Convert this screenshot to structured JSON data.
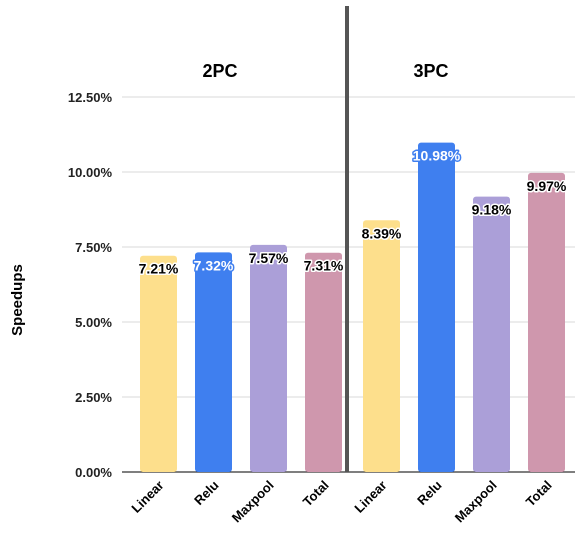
{
  "chart_data": {
    "type": "bar",
    "ylabel": "Speedups",
    "ylim": [
      0,
      12.5
    ],
    "yticks": [
      "0.00%",
      "2.50%",
      "5.00%",
      "7.50%",
      "10.00%",
      "12.50%"
    ],
    "grid": "horizontal",
    "groups": [
      {
        "title": "2PC",
        "bars": [
          {
            "category": "Linear",
            "value": 7.21,
            "label": "7.21%",
            "color": "#fddf8c",
            "label_color": "#000000",
            "label_outline": "#ffffff"
          },
          {
            "category": "Relu",
            "value": 7.32,
            "label": "7.32%",
            "color": "#3f7fef",
            "label_color": "#ffffff",
            "label_outline": "#3f7fef"
          },
          {
            "category": "Maxpool",
            "value": 7.57,
            "label": "7.57%",
            "color": "#ab9fd8",
            "label_color": "#000000",
            "label_outline": "#ffffff"
          },
          {
            "category": "Total",
            "value": 7.31,
            "label": "7.31%",
            "color": "#cf97ad",
            "label_color": "#000000",
            "label_outline": "#ffffff"
          }
        ]
      },
      {
        "title": "3PC",
        "bars": [
          {
            "category": "Linear",
            "value": 8.39,
            "label": "8.39%",
            "color": "#fddf8c",
            "label_color": "#000000",
            "label_outline": "#ffffff"
          },
          {
            "category": "Relu",
            "value": 10.98,
            "label": "10.98%",
            "color": "#3f7fef",
            "label_color": "#ffffff",
            "label_outline": "#3f7fef"
          },
          {
            "category": "Maxpool",
            "value": 9.18,
            "label": "9.18%",
            "color": "#ab9fd8",
            "label_color": "#000000",
            "label_outline": "#ffffff"
          },
          {
            "category": "Total",
            "value": 9.97,
            "label": "9.97%",
            "color": "#cf97ad",
            "label_color": "#000000",
            "label_outline": "#ffffff"
          }
        ]
      }
    ],
    "divider_color": "#555555"
  }
}
